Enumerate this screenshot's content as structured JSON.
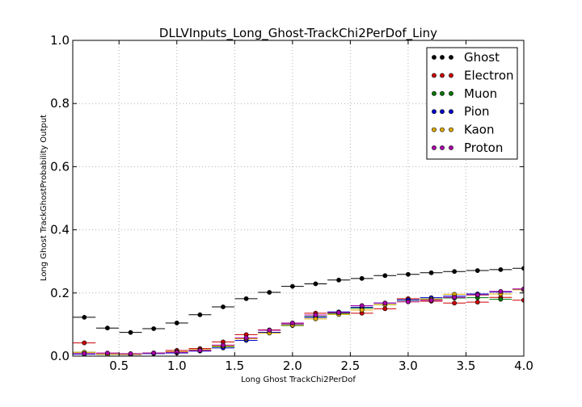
{
  "chart_data": {
    "type": "scatter",
    "title": "DLLVInputs_Long_Ghost-TrackChi2PerDof_Liny",
    "xlabel": "Long Ghost TrackChi2PerDof",
    "ylabel": "Long Ghost TrackGhostProbability Output",
    "xlim": [
      0.1,
      4.0
    ],
    "ylim": [
      0.0,
      1.0
    ],
    "xticks": [
      "0.5",
      "1.0",
      "1.5",
      "2.0",
      "2.5",
      "3.0",
      "3.5",
      "4.0"
    ],
    "xtick_values": [
      0.5,
      1.0,
      1.5,
      2.0,
      2.5,
      3.0,
      3.5,
      4.0
    ],
    "yticks": [
      "0.0",
      "0.2",
      "0.4",
      "0.6",
      "0.8",
      "1.0"
    ],
    "ytick_values": [
      0.0,
      0.2,
      0.4,
      0.6,
      0.8,
      1.0
    ],
    "grid": true,
    "legend_position": "top-right",
    "bin_width": 0.195,
    "x": [
      0.2,
      0.4,
      0.6,
      0.8,
      1.0,
      1.2,
      1.4,
      1.6,
      1.8,
      2.0,
      2.2,
      2.4,
      2.6,
      2.8,
      3.0,
      3.2,
      3.4,
      3.6,
      3.8,
      4.0
    ],
    "series": [
      {
        "name": "Ghost",
        "color": "#000000",
        "values": [
          0.123,
          0.089,
          0.075,
          0.087,
          0.105,
          0.131,
          0.156,
          0.182,
          0.202,
          0.221,
          0.229,
          0.241,
          0.246,
          0.255,
          0.259,
          0.264,
          0.268,
          0.271,
          0.274,
          0.278
        ]
      },
      {
        "name": "Electron",
        "color": "#cc0000",
        "values": [
          0.042,
          0.007,
          0.005,
          0.01,
          0.018,
          0.024,
          0.045,
          0.068,
          0.083,
          0.104,
          0.136,
          0.137,
          0.136,
          0.15,
          0.182,
          0.174,
          0.168,
          0.171,
          0.186,
          0.177
        ]
      },
      {
        "name": "Muon",
        "color": "#007700",
        "values": [
          0.012,
          0.006,
          0.006,
          0.009,
          0.014,
          0.02,
          0.03,
          0.055,
          0.075,
          0.097,
          0.125,
          0.135,
          0.152,
          0.163,
          0.177,
          0.181,
          0.184,
          0.185,
          0.18,
          0.212
        ]
      },
      {
        "name": "Pion",
        "color": "#0000cc",
        "values": [
          0.006,
          0.006,
          0.006,
          0.008,
          0.01,
          0.016,
          0.026,
          0.05,
          0.075,
          0.1,
          0.123,
          0.14,
          0.155,
          0.168,
          0.178,
          0.185,
          0.19,
          0.197,
          0.203,
          0.211
        ]
      },
      {
        "name": "Kaon",
        "color": "#ddaa00",
        "values": [
          0.012,
          0.006,
          0.006,
          0.01,
          0.014,
          0.02,
          0.032,
          0.055,
          0.073,
          0.098,
          0.118,
          0.132,
          0.146,
          0.163,
          0.172,
          0.18,
          0.196,
          0.193,
          0.197,
          0.21
        ]
      },
      {
        "name": "Proton",
        "color": "#aa00aa",
        "values": [
          0.008,
          0.01,
          0.008,
          0.01,
          0.012,
          0.018,
          0.035,
          0.058,
          0.082,
          0.105,
          0.13,
          0.138,
          0.16,
          0.168,
          0.172,
          0.177,
          0.186,
          0.194,
          0.205,
          0.213
        ]
      }
    ]
  }
}
